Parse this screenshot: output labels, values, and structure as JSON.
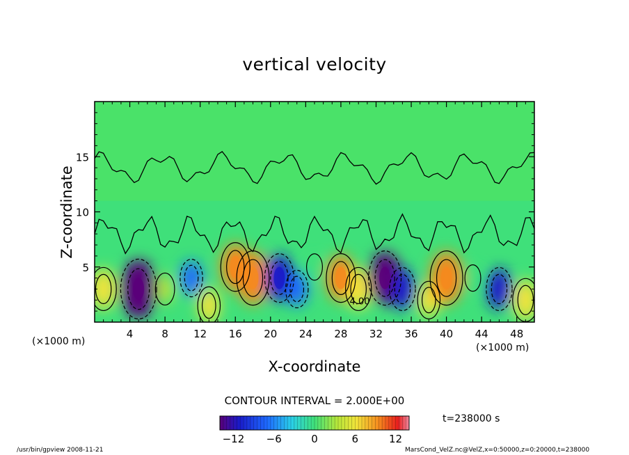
{
  "chart_data": {
    "type": "heatmap",
    "title": "vertical velocity",
    "xlabel": "X-coordinate",
    "ylabel": "Z-coordinate",
    "x_unit_left": "(×1000 m)",
    "x_unit_right": "(×1000 m)",
    "xlim": [
      0,
      50
    ],
    "ylim": [
      0,
      20
    ],
    "x_ticks": [
      "4",
      "8",
      "12",
      "16",
      "20",
      "24",
      "28",
      "32",
      "36",
      "40",
      "44",
      "48"
    ],
    "y_ticks": [
      "5",
      "10",
      "15"
    ],
    "x_tick_values": [
      4,
      8,
      12,
      16,
      20,
      24,
      28,
      32,
      36,
      40,
      44,
      48
    ],
    "y_tick_values": [
      5,
      10,
      15
    ],
    "contour_label": "4.00",
    "contour_interval_text": "CONTOUR INTERVAL = 2.000E+00",
    "time_text": "t=238000 s",
    "colorbar": {
      "min": -14,
      "max": 14,
      "ticks": [
        "−12",
        "−6",
        "0",
        "6",
        "12"
      ],
      "tick_values": [
        -12,
        -6,
        0,
        6,
        12
      ]
    },
    "cells": [
      {
        "x": 1,
        "z": 3,
        "value": 8
      },
      {
        "x": 5,
        "z": 3,
        "value": -14
      },
      {
        "x": 8,
        "z": 3,
        "value": 4
      },
      {
        "x": 11,
        "z": 4,
        "value": -6
      },
      {
        "x": 13,
        "z": 1.5,
        "value": 6
      },
      {
        "x": 16,
        "z": 5,
        "value": 10
      },
      {
        "x": 18,
        "z": 4,
        "value": 12
      },
      {
        "x": 21,
        "z": 4,
        "value": -10
      },
      {
        "x": 23,
        "z": 3,
        "value": -6
      },
      {
        "x": 25,
        "z": 5,
        "value": 2
      },
      {
        "x": 28,
        "z": 4,
        "value": 10
      },
      {
        "x": 30,
        "z": 3,
        "value": 8
      },
      {
        "x": 33,
        "z": 4,
        "value": -12
      },
      {
        "x": 35,
        "z": 3,
        "value": -8
      },
      {
        "x": 38,
        "z": 2,
        "value": 6
      },
      {
        "x": 40,
        "z": 4,
        "value": 12
      },
      {
        "x": 43,
        "z": 4,
        "value": 2
      },
      {
        "x": 46,
        "z": 3,
        "value": -8
      },
      {
        "x": 49,
        "z": 2,
        "value": 8
      }
    ]
  },
  "footer": {
    "left": "/usr/bin/gpview   2008-11-21",
    "right": "MarsCond_VelZ.nc@VelZ,x=0:50000,z=0:20000,t=238000"
  }
}
